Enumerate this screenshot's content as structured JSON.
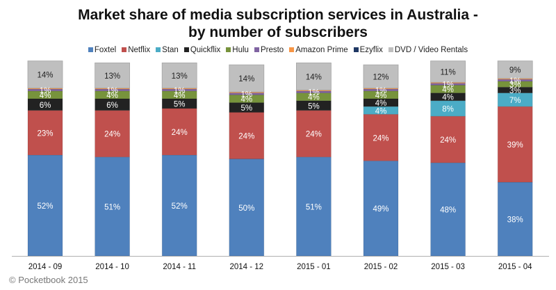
{
  "chart_data": {
    "type": "bar",
    "stacked": true,
    "title": "Market share of media subscription services in Australia - by number of subscribers",
    "title_lines": [
      "Market share of media subscription services in Australia -",
      "by number of subscribers"
    ],
    "xlabel": "",
    "ylabel": "",
    "ylim": [
      0,
      100
    ],
    "grid": false,
    "legend_position": "top-center",
    "categories": [
      "2014 - 09",
      "2014 - 10",
      "2014 - 11",
      "2014 - 12",
      "2015 - 01",
      "2015 - 02",
      "2015 - 03",
      "2015 - 04"
    ],
    "series": [
      {
        "name": "Foxtel",
        "color": "#4f81bd",
        "label_color": "#ffffff",
        "values": [
          52,
          51,
          52,
          50,
          51,
          49,
          48,
          38
        ],
        "labels": [
          "52%",
          "51%",
          "52%",
          "50%",
          "51%",
          "49%",
          "48%",
          "38%"
        ]
      },
      {
        "name": "Netflix",
        "color": "#c0504d",
        "label_color": "#ffffff",
        "values": [
          23,
          24,
          24,
          24,
          24,
          24,
          24,
          39
        ],
        "labels": [
          "23%",
          "24%",
          "24%",
          "24%",
          "24%",
          "24%",
          "24%",
          "39%"
        ]
      },
      {
        "name": "Stan",
        "color": "#4bacc6",
        "label_color": "#ffffff",
        "values": [
          0,
          0,
          0,
          0,
          0,
          4,
          8,
          7
        ],
        "labels": [
          "",
          "",
          "",
          "",
          "",
          "4%",
          "8%",
          "7%"
        ]
      },
      {
        "name": "Quickflix",
        "color": "#222222",
        "label_color": "#ffffff",
        "values": [
          6,
          6,
          5,
          5,
          5,
          4,
          4,
          3
        ],
        "labels": [
          "6%",
          "6%",
          "5%",
          "5%",
          "5%",
          "4%",
          "4%",
          "3%"
        ]
      },
      {
        "name": "Hulu",
        "color": "#77933c",
        "label_color": "#ffffff",
        "values": [
          4,
          4,
          4,
          4,
          4,
          4,
          4,
          3
        ],
        "labels": [
          "4%",
          "4%",
          "4%",
          "4%",
          "4%",
          "4%",
          "4%",
          "3%"
        ]
      },
      {
        "name": "Presto",
        "color": "#8064a2",
        "label_color": "#ffffff",
        "values": [
          1,
          1,
          1,
          1,
          1,
          1,
          1,
          1
        ],
        "labels": [
          "1%",
          "1%",
          "1%",
          "1%",
          "1%",
          "1%",
          "1%",
          "1%"
        ]
      },
      {
        "name": "Amazon Prime",
        "color": "#f79646",
        "label_color": "#ffffff",
        "values": [
          0.5,
          0.5,
          0.5,
          0.5,
          0.5,
          0.5,
          0.5,
          0.5
        ],
        "labels": [
          "",
          "",
          "",
          "",
          "",
          "",
          "",
          ""
        ]
      },
      {
        "name": "Ezyflix",
        "color": "#1f3864",
        "label_color": "#ffffff",
        "values": [
          0,
          0,
          0,
          0,
          0,
          0,
          0,
          0
        ],
        "labels": [
          "",
          "",
          "",
          "",
          "",
          "",
          "",
          ""
        ]
      },
      {
        "name": "DVD / Video Rentals",
        "color": "#bfbfbf",
        "label_color": "#222222",
        "values": [
          14,
          13,
          13,
          14,
          14,
          12,
          11,
          9
        ],
        "labels": [
          "14%",
          "13%",
          "13%",
          "14%",
          "14%",
          "12%",
          "11%",
          "9%"
        ]
      }
    ]
  },
  "footer": {
    "copyright": "© Pocketbook 2015"
  }
}
